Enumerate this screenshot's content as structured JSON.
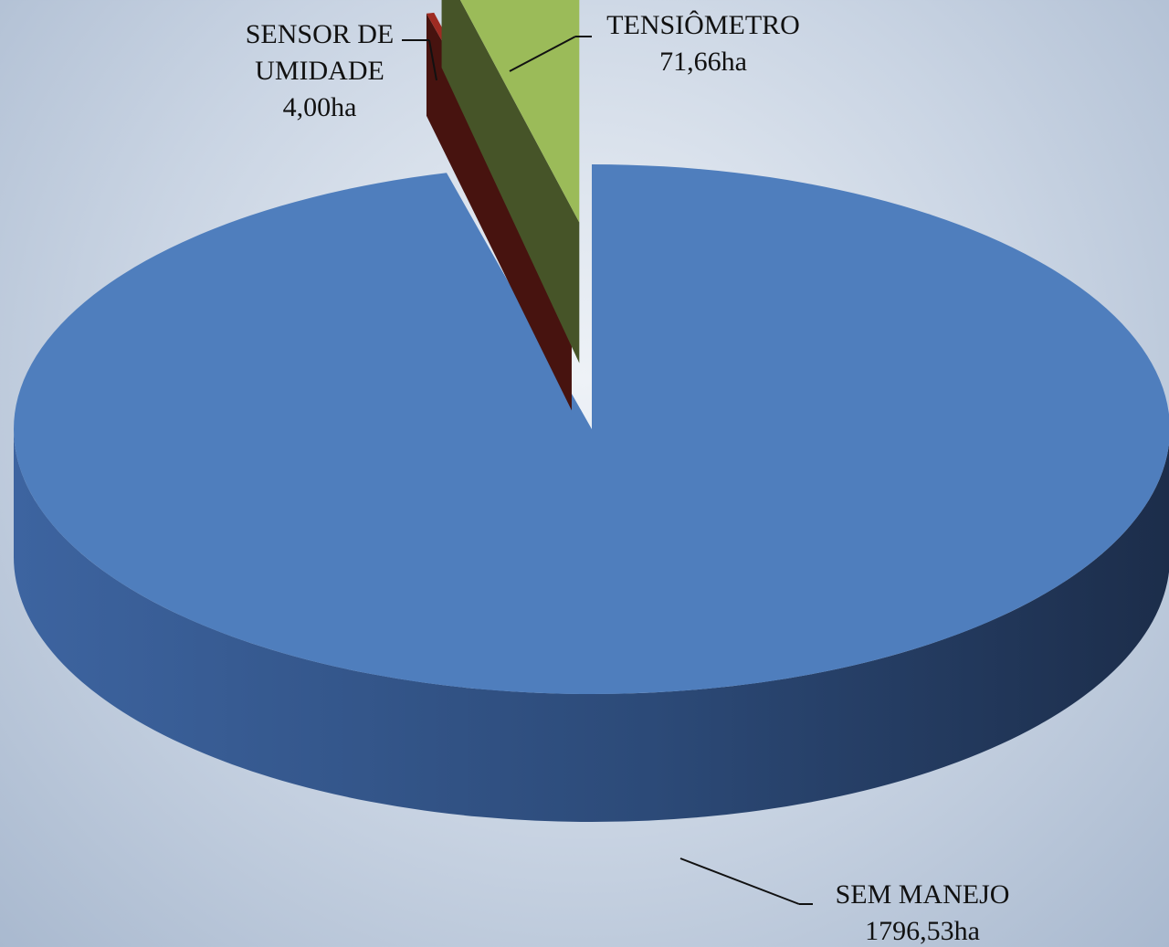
{
  "chart_data": {
    "type": "pie",
    "categories": [
      "SEM MANEJO",
      "SENSOR DE UMIDADE",
      "TENSIÔMETRO"
    ],
    "values": [
      1796.53,
      4.0,
      71.66
    ],
    "value_labels": [
      "1796,53ha",
      "4,00ha",
      "71,66ha"
    ],
    "colors": [
      "#4f7ebd",
      "#9e2b22",
      "#9bbb59"
    ]
  }
}
